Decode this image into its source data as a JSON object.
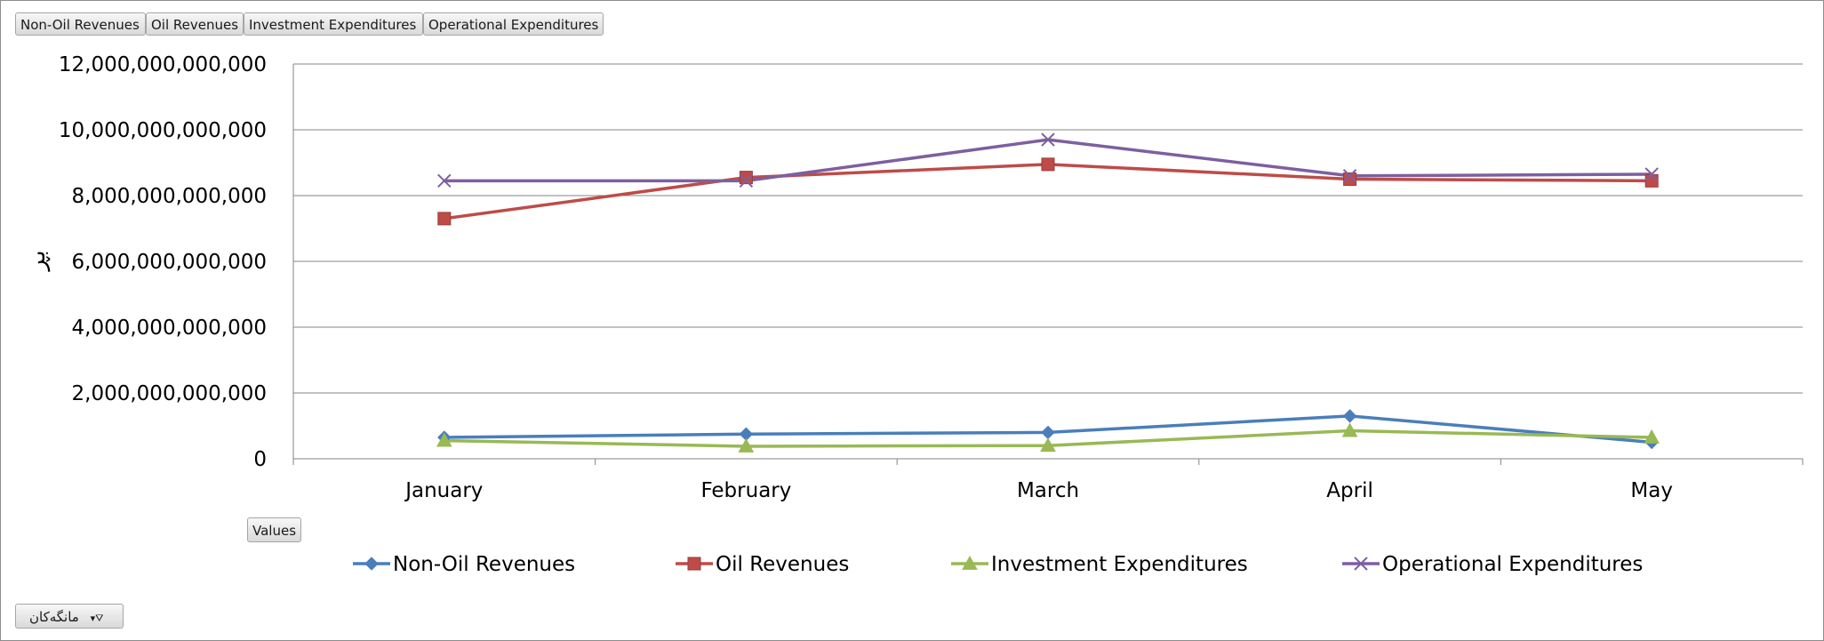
{
  "field_buttons": {
    "series": [
      "Non-Oil Revenues",
      "Oil Revenues",
      "Investment Expenditures",
      "Operational Expenditures"
    ],
    "values": "Values",
    "filter": "مانگەکان"
  },
  "colors": {
    "non_oil": "#4a7ebb",
    "oil": "#be4b48",
    "investment": "#98b954",
    "operational": "#7d5fa0",
    "gridline": "#868686"
  },
  "chart_data": {
    "type": "line",
    "title": "",
    "ylabel": "بڕ",
    "xlabel": "",
    "categories": [
      "January",
      "February",
      "March",
      "April",
      "May"
    ],
    "ylim": [
      0,
      12000000000000
    ],
    "yticks": [
      0,
      2000000000000,
      4000000000000,
      6000000000000,
      8000000000000,
      10000000000000,
      12000000000000
    ],
    "ytick_labels": [
      "0",
      "2,000,000,000,000",
      "4,000,000,000,000",
      "6,000,000,000,000",
      "8,000,000,000,000",
      "10,000,000,000,000",
      "12,000,000,000,000"
    ],
    "grid": true,
    "legend_position": "bottom",
    "series": [
      {
        "name": "Non-Oil Revenues",
        "key": "non_oil",
        "marker": "diamond",
        "values": [
          650000000000,
          750000000000,
          800000000000,
          1300000000000,
          500000000000
        ]
      },
      {
        "name": "Oil Revenues",
        "key": "oil",
        "marker": "square",
        "values": [
          7300000000000,
          8550000000000,
          8950000000000,
          8500000000000,
          8450000000000
        ]
      },
      {
        "name": "Investment Expenditures",
        "key": "investment",
        "marker": "triangle",
        "values": [
          550000000000,
          380000000000,
          400000000000,
          850000000000,
          650000000000
        ]
      },
      {
        "name": "Operational Expenditures",
        "key": "operational",
        "marker": "x",
        "values": [
          8450000000000,
          8450000000000,
          9700000000000,
          8600000000000,
          8650000000000
        ]
      }
    ]
  }
}
